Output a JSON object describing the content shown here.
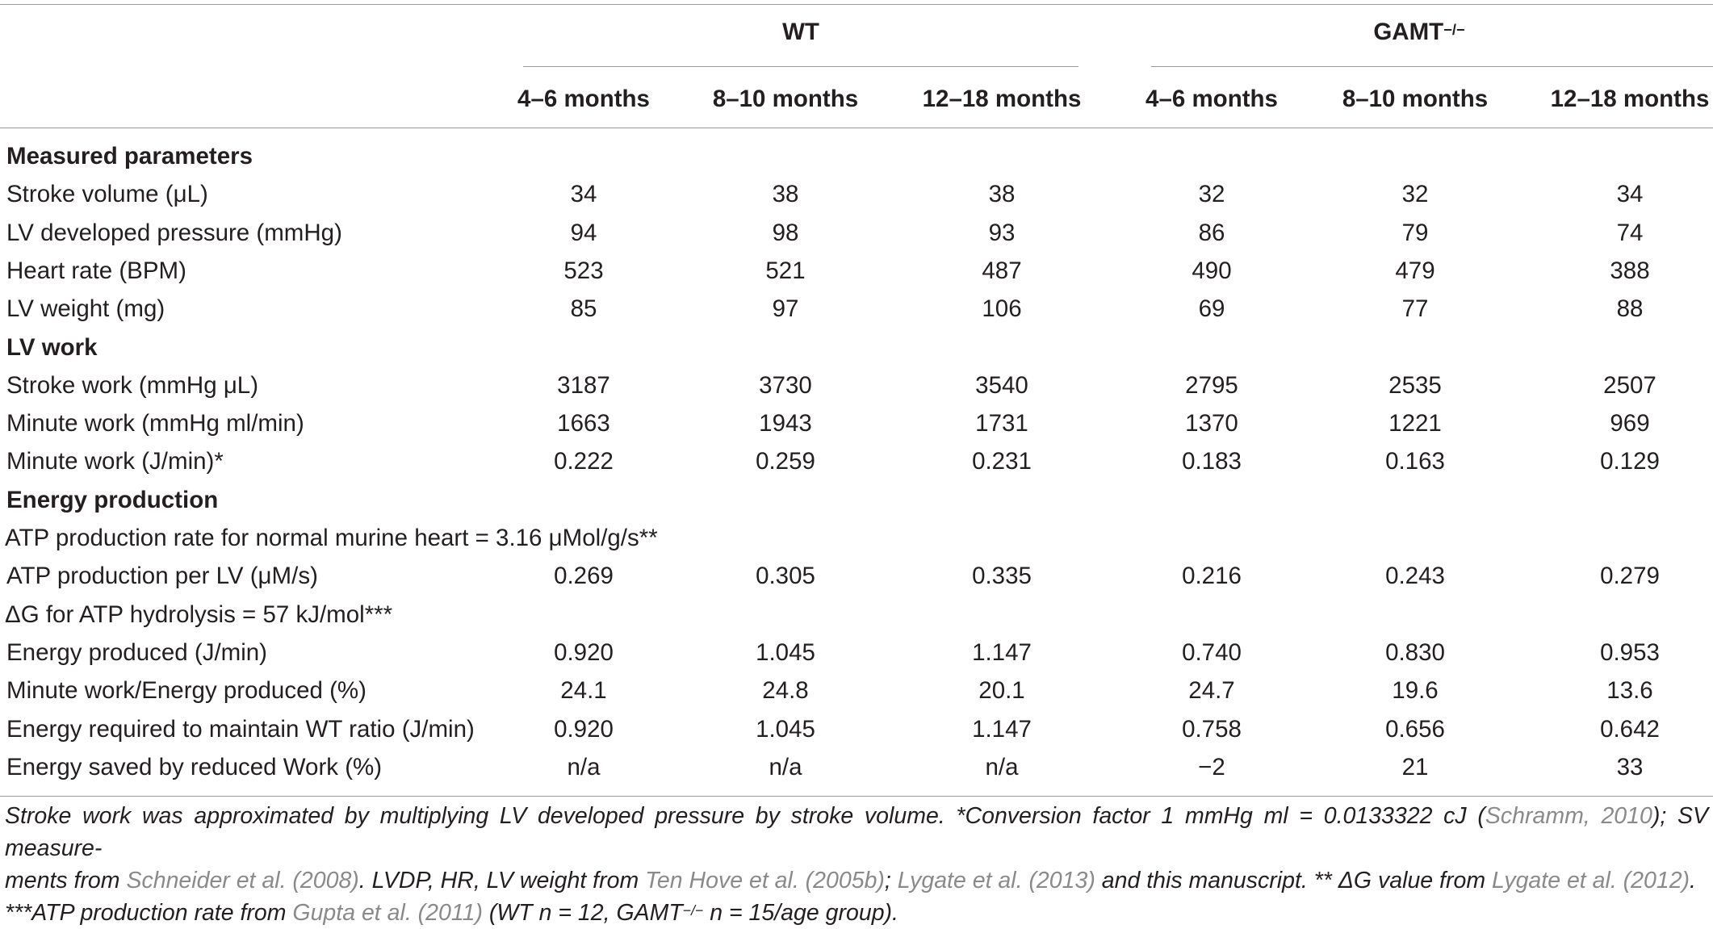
{
  "header": {
    "groups": [
      {
        "label": "WT"
      },
      {
        "label": "GAMT",
        "sup": "−/−"
      }
    ],
    "columns": [
      "4–6 months",
      "8–10 months",
      "12–18 months",
      "4–6 months",
      "8–10 months",
      "12–18 months"
    ]
  },
  "rows": [
    {
      "type": "section",
      "label": "Measured parameters"
    },
    {
      "type": "data",
      "label": "Stroke volume (μL)",
      "values": [
        "34",
        "38",
        "38",
        "32",
        "32",
        "34"
      ]
    },
    {
      "type": "data",
      "label": "LV developed pressure (mmHg)",
      "values": [
        "94",
        "98",
        "93",
        "86",
        "79",
        "74"
      ]
    },
    {
      "type": "data",
      "label": "Heart rate (BPM)",
      "values": [
        "523",
        "521",
        "487",
        "490",
        "479",
        "388"
      ]
    },
    {
      "type": "data",
      "label": "LV weight (mg)",
      "values": [
        "85",
        "97",
        "106",
        "69",
        "77",
        "88"
      ]
    },
    {
      "type": "section",
      "label": "LV work"
    },
    {
      "type": "data",
      "label": "Stroke work (mmHg μL)",
      "values": [
        "3187",
        "3730",
        "3540",
        "2795",
        "2535",
        "2507"
      ]
    },
    {
      "type": "data",
      "label": "Minute work (mmHg ml/min)",
      "values": [
        "1663",
        "1943",
        "1731",
        "1370",
        "1221",
        "969"
      ]
    },
    {
      "type": "data",
      "label": "Minute work (J/min)*",
      "values": [
        "0.222",
        "0.259",
        "0.231",
        "0.183",
        "0.163",
        "0.129"
      ]
    },
    {
      "type": "section",
      "label": "Energy production"
    },
    {
      "type": "note",
      "label": "ATP production rate for normal murine heart = 3.16 μMol/g/s**"
    },
    {
      "type": "data",
      "label": "ATP production per LV (μM/s)",
      "values": [
        "0.269",
        "0.305",
        "0.335",
        "0.216",
        "0.243",
        "0.279"
      ]
    },
    {
      "type": "note",
      "label": "ΔG for ATP hydrolysis = 57 kJ/mol***"
    },
    {
      "type": "data",
      "label": "Energy produced (J/min)",
      "values": [
        "0.920",
        "1.045",
        "1.147",
        "0.740",
        "0.830",
        "0.953"
      ]
    },
    {
      "type": "data",
      "label": "Minute work/Energy produced (%)",
      "values": [
        "24.1",
        "24.8",
        "20.1",
        "24.7",
        "19.6",
        "13.6"
      ]
    },
    {
      "type": "data",
      "label": "Energy required to maintain WT ratio (J/min)",
      "values": [
        "0.920",
        "1.045",
        "1.147",
        "0.758",
        "0.656",
        "0.642"
      ]
    },
    {
      "type": "data",
      "label": "Energy saved by reduced Work (%)",
      "values": [
        "n/a",
        "n/a",
        "n/a",
        "−2",
        "21",
        "33"
      ]
    }
  ],
  "footnote": {
    "line1_a": "Stroke work was approximated by multiplying LV developed pressure by stroke volume. *Conversion factor 1 mmHg ml = 0.0133322 cJ (",
    "ref_schramm": "Schramm, 2010",
    "line1_b": "); SV measure-",
    "line2_a": "ments from ",
    "ref_schneider": "Schneider et al. (2008)",
    "line2_b": ". LVDP, HR, LV weight from ",
    "ref_tenhove": "Ten Hove et al. (2005b)",
    "line2_c": "; ",
    "ref_lygate2013": "Lygate et al. (2013)",
    "line2_d": " and this manuscript. ** ΔG value from ",
    "ref_lygate2012": "Lygate et al. (2012)",
    "line2_e": ".",
    "line3_a": "***ATP production rate from ",
    "ref_gupta": "Gupta et al. (2011)",
    "line3_b": " (WT n = 12, GAMT",
    "line3_sup": "−/−",
    "line3_c": " n = 15/age group)."
  }
}
